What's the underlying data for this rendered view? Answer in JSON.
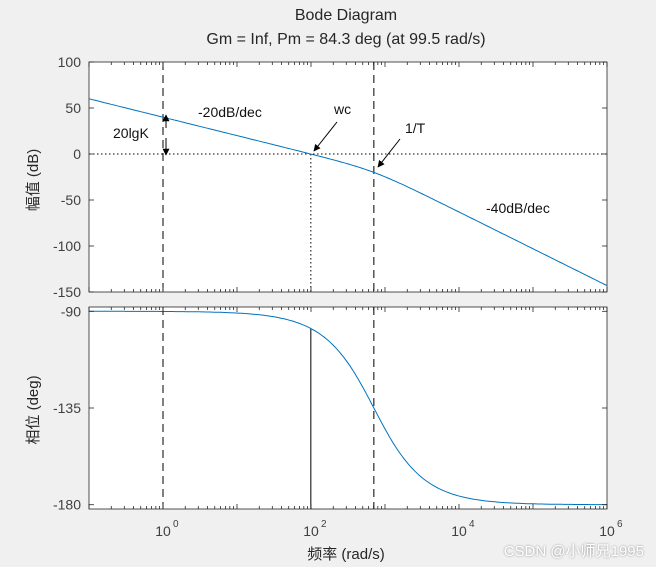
{
  "chart_data": {
    "type": "line",
    "title": "Bode Diagram",
    "subtitle": "Gm = Inf,  Pm = 84.3 deg (at 99.5 rad/s)",
    "xlabel": "频率  (rad/s)",
    "xscale": "log",
    "xlim": [
      0.1,
      1000000
    ],
    "x_ticks": [
      1,
      100,
      10000,
      1000000
    ],
    "x_tick_labels": [
      {
        "base": "10",
        "exp": "0"
      },
      {
        "base": "10",
        "exp": "2"
      },
      {
        "base": "10",
        "exp": "4"
      },
      {
        "base": "10",
        "exp": "6"
      }
    ],
    "magnitude": {
      "ylabel": "幅值 (dB)",
      "ylim": [
        -150,
        100
      ],
      "y_ticks": [
        100,
        50,
        0,
        -50,
        -100,
        -150
      ],
      "y_tick_labels": [
        "100",
        "50",
        "0",
        "-50",
        "-100",
        "-150"
      ],
      "gain_db": 40,
      "corner_rad_s": 707
    },
    "phase": {
      "ylabel": "相位 (deg)",
      "ylim": [
        -182,
        -88
      ],
      "y_ticks": [
        -90,
        -135,
        -180
      ],
      "y_tick_labels": [
        "-90",
        "-135",
        "-180"
      ]
    },
    "reference_lines": {
      "k_freq": 1,
      "crossover_freq": 99.5,
      "corner_freq": 707
    },
    "annotations": {
      "gain_label": "20lgK",
      "slope1": "-20dB/dec",
      "crossover": "wc",
      "corner": "1/T",
      "slope2": "-40dB/dec"
    },
    "grid": false,
    "line_color": "#0072bd"
  },
  "watermark": "CSDN @小师兄1995"
}
